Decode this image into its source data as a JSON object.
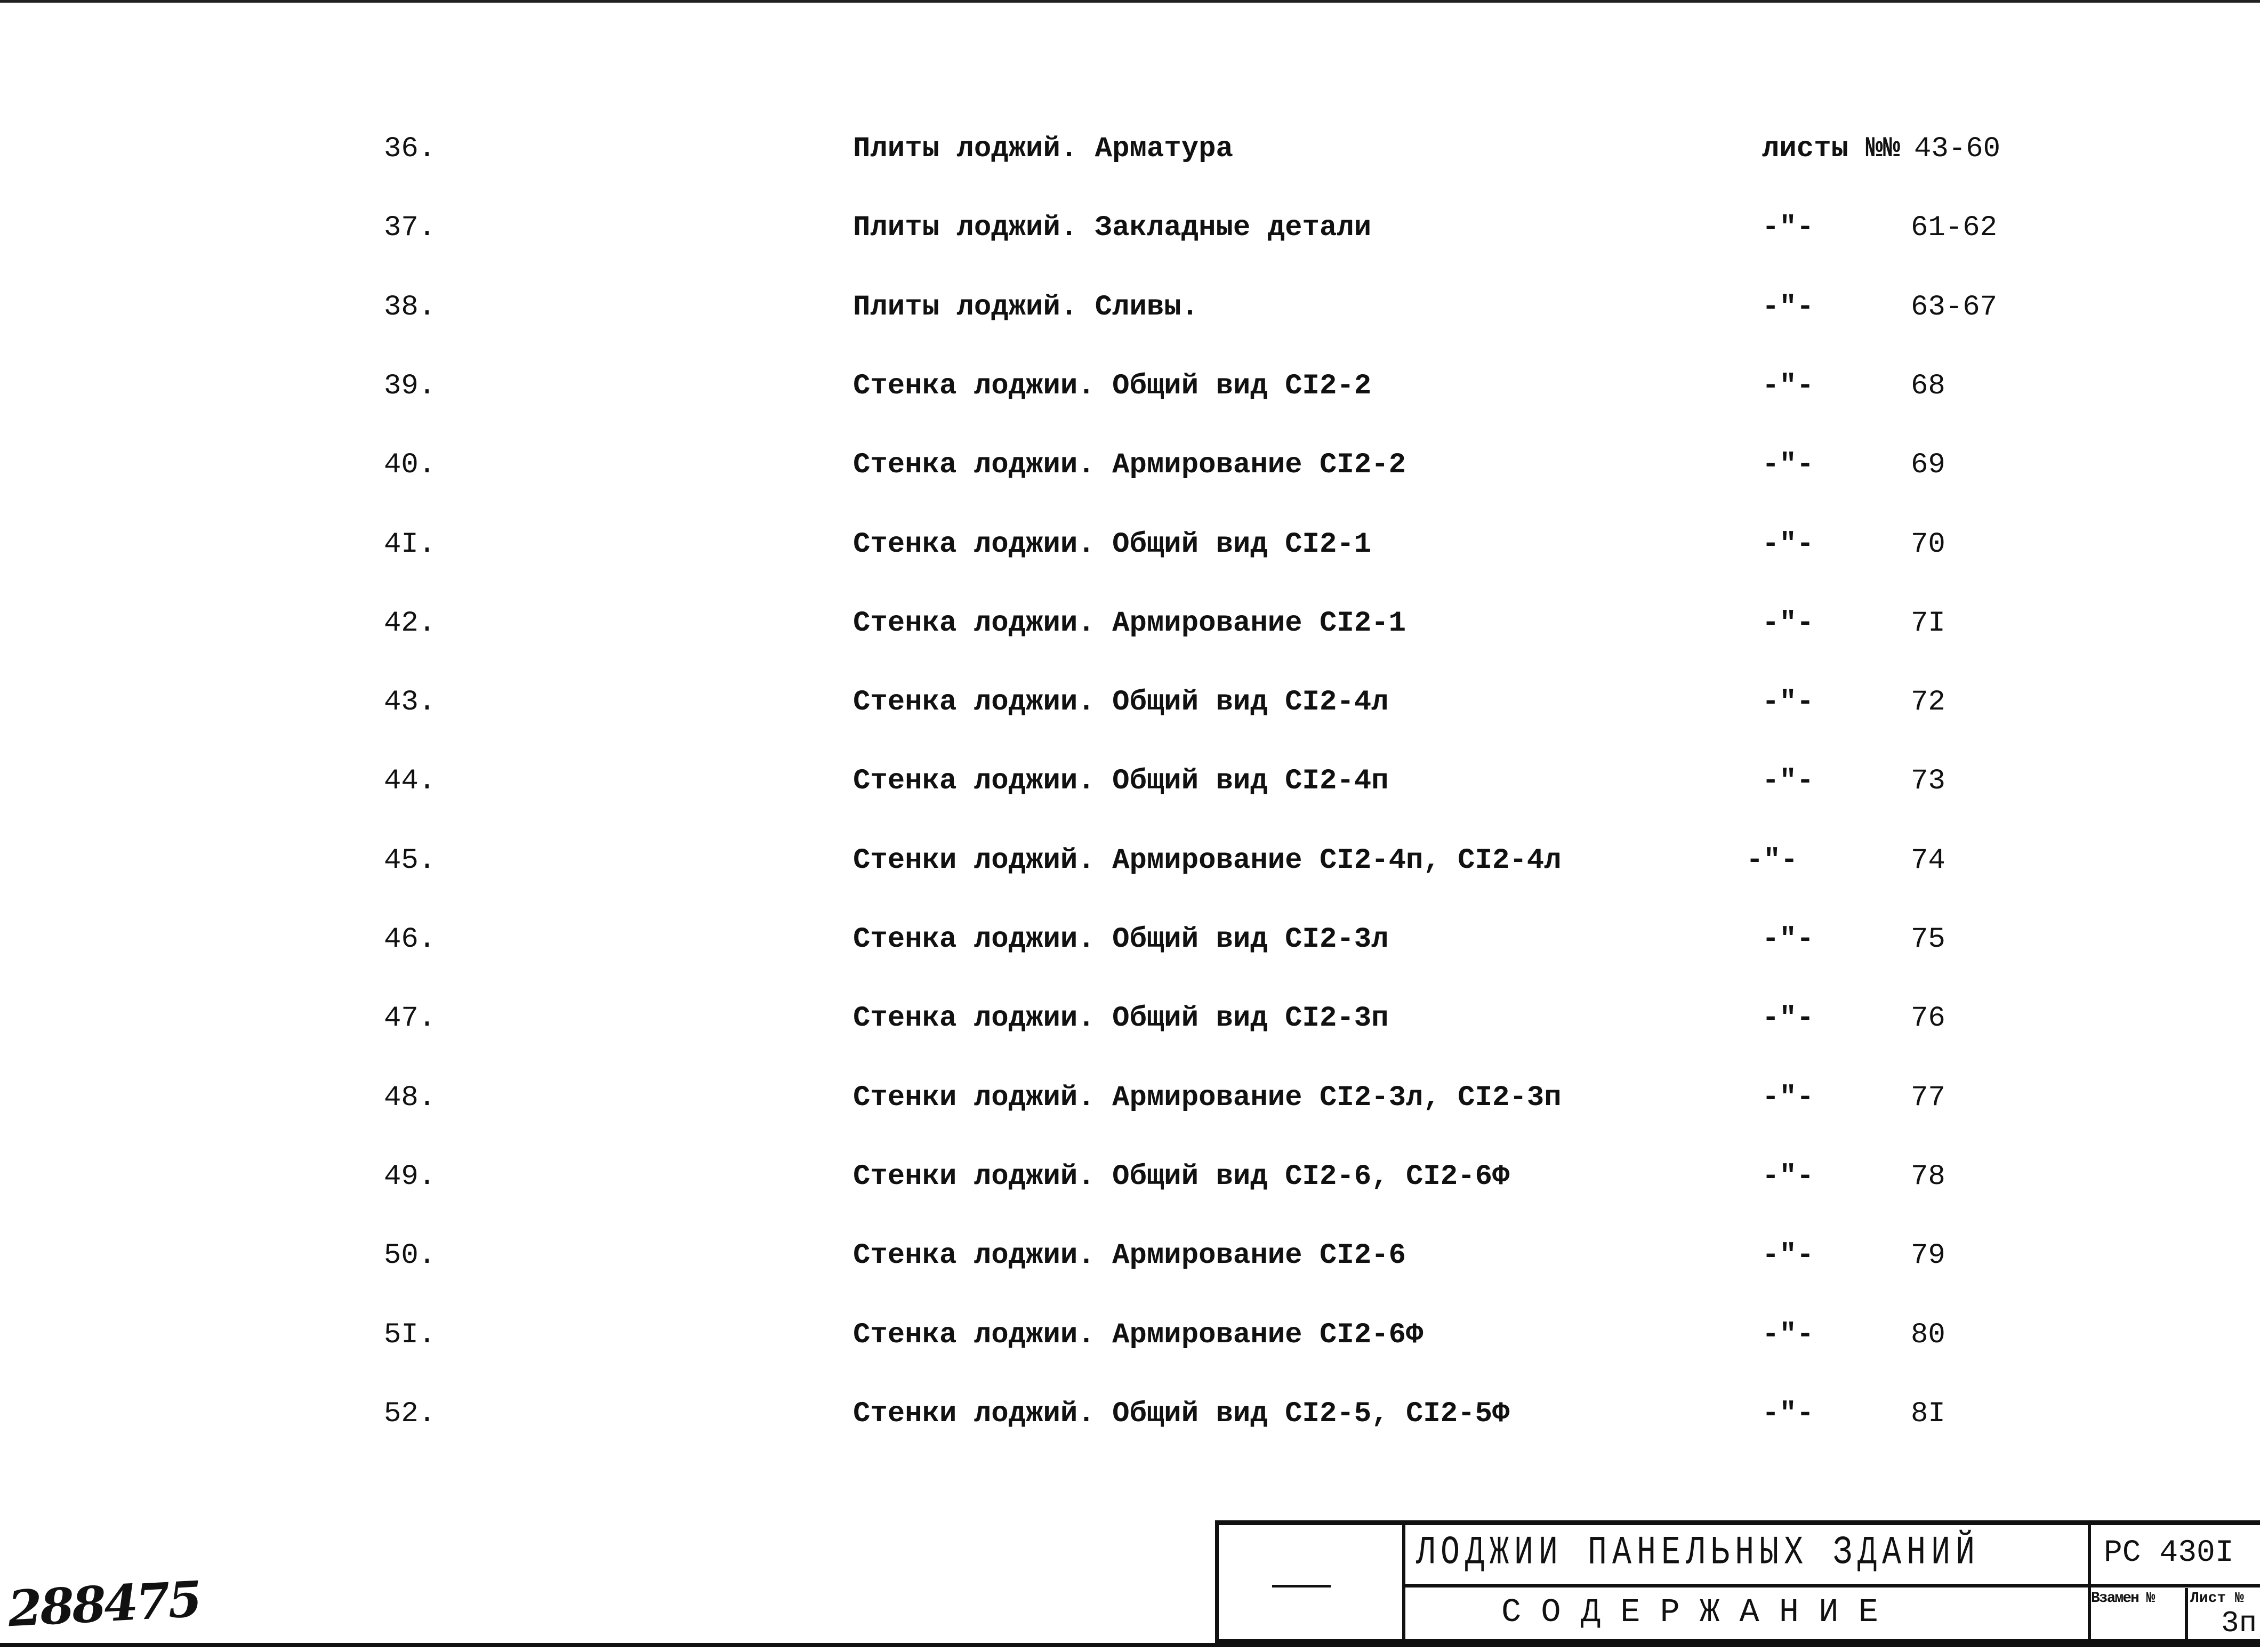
{
  "contents": [
    {
      "no": "36.",
      "title": "Плиты лоджий. Арматура",
      "ref": "листы №№",
      "sheets": "43-60"
    },
    {
      "no": "37.",
      "title": "Плиты лоджий. Закладные детали",
      "ref": "-\"-",
      "sheets": "61-62"
    },
    {
      "no": "38.",
      "title": "Плиты лоджий. Сливы.",
      "ref": "-\"-",
      "sheets": "63-67"
    },
    {
      "no": "39.",
      "title": "Стенка лоджии. Общий вид СI2-2",
      "ref": "-\"-",
      "sheets": "68"
    },
    {
      "no": "40.",
      "title": "Стенка лоджии. Армирование СI2-2",
      "ref": "-\"-",
      "sheets": "69"
    },
    {
      "no": "4I.",
      "title": "Стенка лоджии. Общий вид СI2-1",
      "ref": "-\"-",
      "sheets": "70"
    },
    {
      "no": "42.",
      "title": "Стенка лоджии. Армирование СI2-1",
      "ref": "-\"-",
      "sheets": "7I"
    },
    {
      "no": "43.",
      "title": "Стенка лоджии. Общий вид СI2-4л",
      "ref": "-\"-",
      "sheets": "72"
    },
    {
      "no": "44.",
      "title": "Стенка лоджии. Общий вид СI2-4п",
      "ref": "-\"-",
      "sheets": "73"
    },
    {
      "no": "45.",
      "title": "Стенки лоджий. Армирование СI2-4п, СI2-4л",
      "ref": "-\"-",
      "sheets": "74"
    },
    {
      "no": "46.",
      "title": "Стенка лоджии. Общий вид СI2-3л",
      "ref": "-\"-",
      "sheets": "75"
    },
    {
      "no": "47.",
      "title": "Стенка лоджии. Общий вид СI2-3п",
      "ref": "-\"-",
      "sheets": "76"
    },
    {
      "no": "48.",
      "title": "Стенки лоджий. Армирование СI2-3л, СI2-3п",
      "ref": "-\"-",
      "sheets": "77"
    },
    {
      "no": "49.",
      "title": "Стенки лоджий. Общий вид СI2-6, СI2-6Ф",
      "ref": "-\"-",
      "sheets": "78"
    },
    {
      "no": "50.",
      "title": "Стенка лоджии. Армирование СI2-6",
      "ref": "-\"-",
      "sheets": "79"
    },
    {
      "no": "5I.",
      "title": "Стенка лоджии. Армирование СI2-6Ф",
      "ref": "-\"-",
      "sheets": "80"
    },
    {
      "no": "52.",
      "title": "Стенки лоджий. Общий вид СI2-5, СI2-5Ф",
      "ref": "-\"-",
      "sheets": "8I"
    }
  ],
  "title_block": {
    "dash": "—",
    "project": "ЛОДЖИИ ПАНЕЛЬНЫХ ЗДАНИЙ",
    "doc_title": "С О Д Е Р Ж А Н И Е",
    "code": "РС 430I",
    "replaces_label": "Взамен №",
    "sheet_label": "Лист №",
    "sheet_value": "3п"
  },
  "handwritten_number": "288475"
}
